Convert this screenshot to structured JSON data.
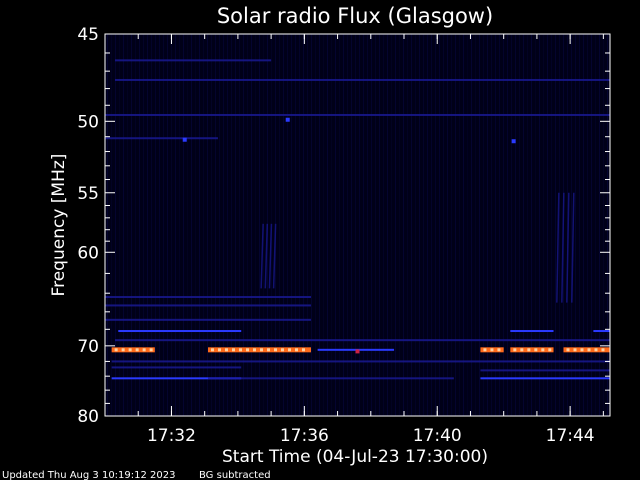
{
  "chart_data": {
    "type": "heatmap",
    "title": "Solar radio Flux (Glasgow)",
    "xlabel": "Start Time (04-Jul-23 17:30:00)",
    "ylabel": "Frequency [MHz]",
    "xlim_minutes_after_start": [
      0,
      15.2
    ],
    "ylim_mhz": [
      80,
      45
    ],
    "y_scale": "reciprocal",
    "x_ticks": [
      {
        "minute": 2,
        "label": "17:32"
      },
      {
        "minute": 6,
        "label": "17:36"
      },
      {
        "minute": 10,
        "label": "17:40"
      },
      {
        "minute": 14,
        "label": "17:44"
      }
    ],
    "x_minor_step_minutes": 1,
    "y_ticks": [
      {
        "mhz": 45,
        "label": "45"
      },
      {
        "mhz": 50,
        "label": "50"
      },
      {
        "mhz": 55,
        "label": "55"
      },
      {
        "mhz": 60,
        "label": "60"
      },
      {
        "mhz": 70,
        "label": "70"
      },
      {
        "mhz": 80,
        "label": "80"
      }
    ],
    "y_minor_mhz": [
      46,
      47,
      48,
      49,
      51,
      52,
      53,
      54,
      56,
      57,
      58,
      59,
      62,
      64,
      66,
      68,
      72,
      74,
      76,
      78
    ],
    "colors": {
      "background": "#000000",
      "plot_background": "#000018",
      "axes": "#ffffff",
      "weak_emission": "#1a1a9a",
      "medium_emission": "#2a3aff",
      "strong_emission": "#ff6a1a",
      "peak_emission": "#ffd0a0",
      "spike": "#cc2244"
    },
    "features": [
      {
        "kind": "interference_line",
        "freq_mhz": 49.6,
        "t_start": 0,
        "t_end": 15.2,
        "intensity": "weak"
      },
      {
        "kind": "interference_line",
        "freq_mhz": 47.5,
        "t_start": 0.3,
        "t_end": 15.2,
        "intensity": "weak"
      },
      {
        "kind": "interference_line",
        "freq_mhz": 46.4,
        "t_start": 0.3,
        "t_end": 5,
        "intensity": "weak"
      },
      {
        "kind": "interference_line",
        "freq_mhz": 51.1,
        "t_start": 0,
        "t_end": 3.4,
        "intensity": "weak"
      },
      {
        "kind": "interference_line",
        "freq_mhz": 64.4,
        "t_start": 0,
        "t_end": 6.2,
        "intensity": "weak"
      },
      {
        "kind": "interference_line",
        "freq_mhz": 65.3,
        "t_start": 0,
        "t_end": 6.2,
        "intensity": "weak"
      },
      {
        "kind": "interference_line",
        "freq_mhz": 66.9,
        "t_start": 0,
        "t_end": 6.2,
        "intensity": "weak"
      },
      {
        "kind": "interference_line",
        "freq_mhz": 68.2,
        "t_start": 0.4,
        "t_end": 4.1,
        "intensity": "medium"
      },
      {
        "kind": "interference_line",
        "freq_mhz": 68.2,
        "t_start": 12.2,
        "t_end": 13.5,
        "intensity": "medium"
      },
      {
        "kind": "interference_line",
        "freq_mhz": 68.2,
        "t_start": 14.7,
        "t_end": 15.2,
        "intensity": "medium"
      },
      {
        "kind": "interference_line",
        "freq_mhz": 69.3,
        "t_start": 0.3,
        "t_end": 15.2,
        "intensity": "weak"
      },
      {
        "kind": "interference_line",
        "freq_mhz": 70.5,
        "t_start": 0.2,
        "t_end": 1.5,
        "intensity": "strong"
      },
      {
        "kind": "interference_line",
        "freq_mhz": 70.5,
        "t_start": 3.1,
        "t_end": 6.2,
        "intensity": "strong"
      },
      {
        "kind": "interference_line",
        "freq_mhz": 70.5,
        "t_start": 6.4,
        "t_end": 8.7,
        "intensity": "medium"
      },
      {
        "kind": "interference_line",
        "freq_mhz": 70.5,
        "t_start": 11.3,
        "t_end": 12.0,
        "intensity": "strong"
      },
      {
        "kind": "interference_line",
        "freq_mhz": 70.5,
        "t_start": 12.2,
        "t_end": 13.5,
        "intensity": "strong"
      },
      {
        "kind": "interference_line",
        "freq_mhz": 70.5,
        "t_start": 13.8,
        "t_end": 15.2,
        "intensity": "strong"
      },
      {
        "kind": "interference_line",
        "freq_mhz": 72.0,
        "t_start": 0.2,
        "t_end": 15.2,
        "intensity": "weak"
      },
      {
        "kind": "interference_line",
        "freq_mhz": 72.8,
        "t_start": 0.2,
        "t_end": 4.1,
        "intensity": "weak"
      },
      {
        "kind": "interference_line",
        "freq_mhz": 73.2,
        "t_start": 11.3,
        "t_end": 15.2,
        "intensity": "weak"
      },
      {
        "kind": "interference_line",
        "freq_mhz": 74.3,
        "t_start": 0.2,
        "t_end": 4.1,
        "intensity": "medium"
      },
      {
        "kind": "interference_line",
        "freq_mhz": 74.3,
        "t_start": 11.3,
        "t_end": 15.2,
        "intensity": "medium"
      },
      {
        "kind": "interference_line",
        "freq_mhz": 74.3,
        "t_start": 3.1,
        "t_end": 10.5,
        "intensity": "weak"
      },
      {
        "kind": "burst",
        "t_start": 4.7,
        "t_end": 5.2,
        "freq_start_mhz": 57.5,
        "freq_end_mhz": 63.5,
        "intensity": "weak"
      },
      {
        "kind": "burst",
        "t_start": 13.6,
        "t_end": 14.2,
        "freq_start_mhz": 55.0,
        "freq_end_mhz": 65.0,
        "intensity": "weak"
      },
      {
        "kind": "spot",
        "t": 2.4,
        "freq_mhz": 51.2,
        "intensity": "medium"
      },
      {
        "kind": "spot",
        "t": 12.3,
        "freq_mhz": 51.3,
        "intensity": "medium"
      },
      {
        "kind": "spot",
        "t": 5.5,
        "freq_mhz": 49.9,
        "intensity": "medium"
      },
      {
        "kind": "spot",
        "t": 7.6,
        "freq_mhz": 70.7,
        "intensity": "spike"
      }
    ]
  },
  "footer": {
    "updated": "Updated Thu Aug  3 10:19:12 2023",
    "note": "BG subtracted"
  }
}
